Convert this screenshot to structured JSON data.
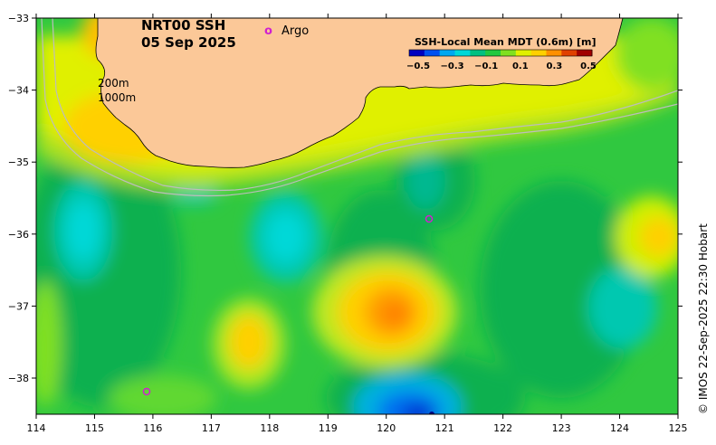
{
  "title_line1": "NRT00 SSH",
  "title_line2": "05 Sep 2025",
  "argo_legend": {
    "marker": "o",
    "label": "Argo"
  },
  "isobath_labels": [
    "200m",
    "1000m"
  ],
  "colorbar": {
    "title": "SSH-Local Mean MDT (0.6m) [m]",
    "ticks": [
      "−0.5",
      "−0.3",
      "−0.1",
      "0.1",
      "0.3",
      "0.5"
    ],
    "colors": [
      "#0000c0",
      "#0050f0",
      "#00a8f0",
      "#00d8d8",
      "#00c080",
      "#20c840",
      "#80e020",
      "#e0f000",
      "#ffd000",
      "#ff9000",
      "#e04000",
      "#a00000"
    ]
  },
  "x_axis": {
    "ticks": [
      "114",
      "115",
      "116",
      "117",
      "118",
      "119",
      "120",
      "121",
      "122",
      "123",
      "124",
      "125"
    ]
  },
  "y_axis": {
    "ticks": [
      "−33",
      "−34",
      "−35",
      "−36",
      "−37",
      "−38"
    ]
  },
  "credit": "© IMOS 22-Sep-2025 22:30 Hobart",
  "colors": {
    "land": "#fbc898",
    "ocean_base": "#30c840"
  }
}
